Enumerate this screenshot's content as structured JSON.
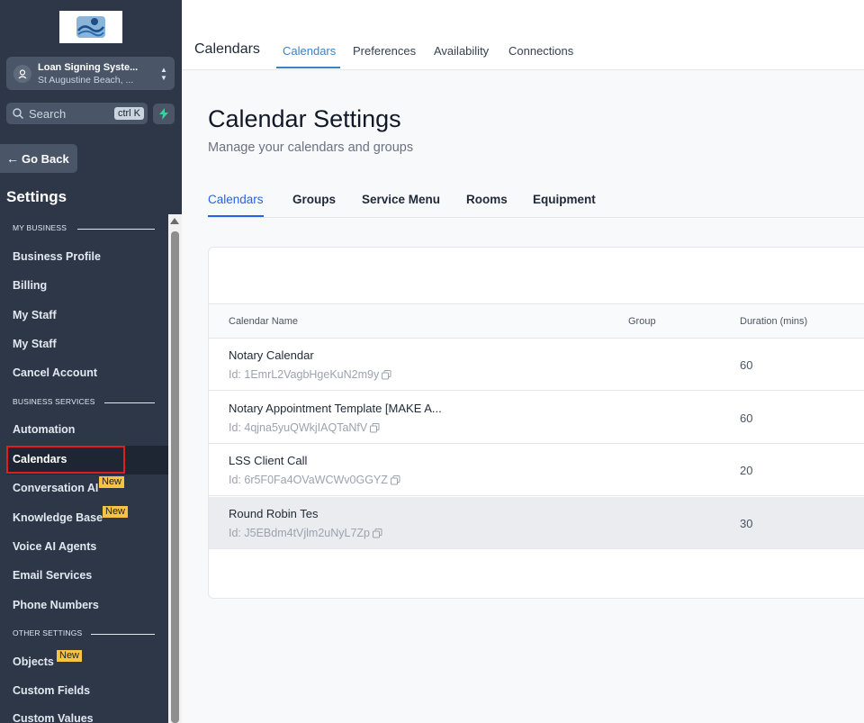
{
  "sidebar": {
    "account": {
      "name": "Loan Signing Syste...",
      "location": "St Augustine Beach, ..."
    },
    "search": {
      "placeholder": "Search",
      "shortcut": "ctrl K"
    },
    "go_back": "Go Back",
    "title": "Settings",
    "sections": {
      "my_business": "MY BUSINESS",
      "business_services": "BUSINESS SERVICES",
      "other_settings": "OTHER SETTINGS"
    },
    "items": [
      {
        "label": "Business Profile"
      },
      {
        "label": "Billing"
      },
      {
        "label": "My Staff"
      },
      {
        "label": "My Staff"
      },
      {
        "label": "Cancel Account"
      },
      {
        "label": "Automation"
      },
      {
        "label": "Calendars",
        "active": true
      },
      {
        "label": "Conversation AI",
        "badge": "New"
      },
      {
        "label": "Knowledge Base",
        "badge": "New"
      },
      {
        "label": "Voice AI Agents"
      },
      {
        "label": "Email Services"
      },
      {
        "label": "Phone Numbers"
      },
      {
        "label": "Objects",
        "badge": "New"
      },
      {
        "label": "Custom Fields"
      },
      {
        "label": "Custom Values"
      }
    ]
  },
  "topbar": {
    "title": "Calendars",
    "tabs": [
      "Calendars",
      "Preferences",
      "Availability",
      "Connections"
    ],
    "active_tab": "Calendars"
  },
  "main": {
    "title": "Calendar Settings",
    "subtitle": "Manage your calendars and groups",
    "subtabs": [
      "Calendars",
      "Groups",
      "Service Menu",
      "Rooms",
      "Equipment"
    ],
    "active_subtab": "Calendars",
    "table": {
      "columns": [
        "Calendar Name",
        "Group",
        "Duration (mins)"
      ],
      "rows": [
        {
          "name": "Notary Calendar",
          "id": "Id: 1EmrL2VagbHgeKuN2m9y",
          "group": "",
          "duration": "60"
        },
        {
          "name": "Notary Appointment Template [MAKE A...",
          "id": "Id: 4qjna5yuQWkjIAQTaNfV",
          "group": "",
          "duration": "60"
        },
        {
          "name": "LSS Client Call",
          "id": "Id: 6r5F0Fa4OVaWCWv0GGYZ",
          "group": "",
          "duration": "20"
        },
        {
          "name": "Round Robin Tes",
          "id": "Id: J5EBdm4tVjlm2uNyL7Zp",
          "group": "",
          "duration": "30"
        }
      ]
    }
  },
  "colors": {
    "sidebar_bg": "#2d3748",
    "accent": "#2563eb",
    "badge": "#f6c343",
    "highlight_box": "#e11d1d"
  },
  "icons": [
    "user-pin-icon",
    "chevron-updown-icon",
    "search-icon",
    "bolt-icon",
    "arrow-left-icon",
    "copy-icon"
  ]
}
